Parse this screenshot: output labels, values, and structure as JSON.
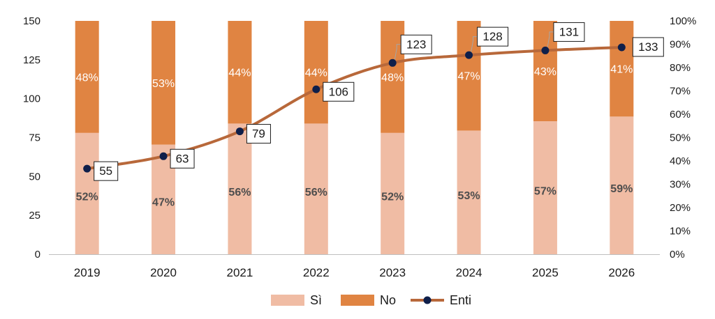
{
  "chart_data": {
    "type": "bar",
    "stacked": true,
    "categories": [
      "2019",
      "2020",
      "2021",
      "2022",
      "2023",
      "2024",
      "2025",
      "2026"
    ],
    "series": [
      {
        "name": "Sì",
        "type": "bar",
        "axis": "right",
        "values": [
          52,
          47,
          56,
          56,
          52,
          53,
          57,
          59
        ],
        "labels": [
          "52%",
          "47%",
          "56%",
          "56%",
          "52%",
          "53%",
          "57%",
          "59%"
        ],
        "color": "#f0bca4"
      },
      {
        "name": "No",
        "type": "bar",
        "axis": "right",
        "values": [
          48,
          53,
          44,
          44,
          48,
          47,
          43,
          41
        ],
        "labels": [
          "48%",
          "53%",
          "44%",
          "44%",
          "48%",
          "47%",
          "43%",
          "41%"
        ],
        "color": "#e08442"
      },
      {
        "name": "Enti",
        "type": "line",
        "axis": "left",
        "values": [
          55,
          63,
          79,
          106,
          123,
          128,
          131,
          133
        ],
        "labels": [
          "55",
          "63",
          "79",
          "106",
          "123",
          "128",
          "131",
          "133"
        ],
        "color": "#b8683a",
        "marker_color": "#0f1f4a"
      }
    ],
    "y_left": {
      "ylim": [
        0,
        150
      ],
      "ticks": [
        "0",
        "25",
        "50",
        "75",
        "100",
        "125",
        "150"
      ]
    },
    "y_right": {
      "ylim": [
        0,
        100
      ],
      "ticks": [
        "0%",
        "10%",
        "20%",
        "30%",
        "40%",
        "50%",
        "60%",
        "70%",
        "80%",
        "90%",
        "100%"
      ]
    },
    "title": "",
    "xlabel": "",
    "ylabel": "",
    "grid": false,
    "legend": {
      "placement": "bottom-center",
      "entries": [
        "Sì",
        "No",
        "Enti"
      ]
    }
  }
}
